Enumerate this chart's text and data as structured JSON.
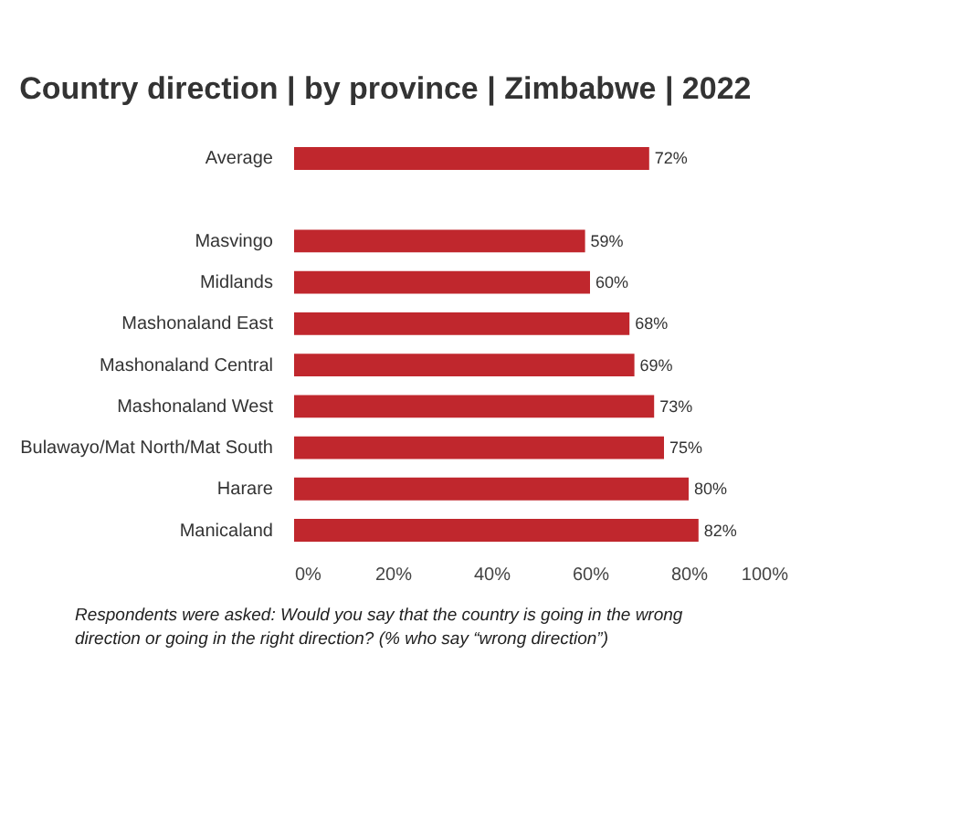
{
  "chart_data": {
    "type": "bar",
    "orientation": "horizontal",
    "title": "Country direction | by province | Zimbabwe | 2022",
    "categories": [
      "Average",
      null,
      "Masvingo",
      "Midlands",
      "Mashonaland East",
      "Mashonaland Central",
      "Mashonaland West",
      "Bulawayo/Mat North/Mat South",
      "Harare",
      "Manicaland"
    ],
    "values": [
      72,
      null,
      59,
      60,
      68,
      69,
      73,
      75,
      80,
      82
    ],
    "value_labels": [
      "72%",
      null,
      "59%",
      "60%",
      "68%",
      "69%",
      "73%",
      "75%",
      "80%",
      "82%"
    ],
    "color": "#c0272d",
    "xlim": [
      0,
      100
    ],
    "xticks": [
      {
        "value": 0,
        "label": "0%"
      },
      {
        "value": 20,
        "label": "20%"
      },
      {
        "value": 40,
        "label": "40%"
      },
      {
        "value": 60,
        "label": "60%"
      },
      {
        "value": 80,
        "label": "80%"
      },
      {
        "value": 100,
        "label": "100%"
      }
    ],
    "grid": false,
    "annotations": [
      "Respondents were asked: Would you say that the country is going in the wrong direction or going in the right direction? (% who say “wrong direction”)"
    ]
  }
}
